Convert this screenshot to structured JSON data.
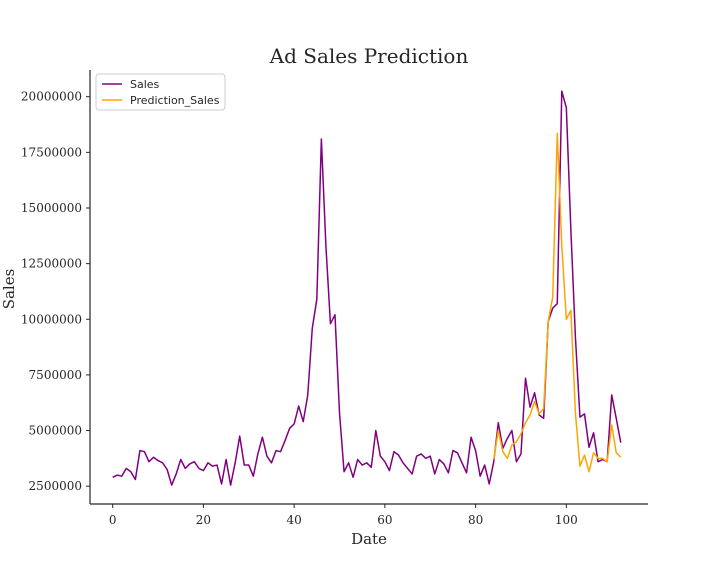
{
  "chart_data": {
    "type": "line",
    "title": "Ad Sales Prediction",
    "xlabel": "Date",
    "ylabel": "Sales",
    "xlim": [
      -5,
      118
    ],
    "ylim": [
      1700000,
      21200000
    ],
    "xticks": [
      0,
      20,
      40,
      60,
      80,
      100
    ],
    "yticks": [
      2500000,
      5000000,
      7500000,
      10000000,
      12500000,
      15000000,
      17500000,
      20000000
    ],
    "grid": false,
    "legend_position": "top-left",
    "series": [
      {
        "name": "Sales",
        "color": "#800080",
        "x_start": 0,
        "values": [
          2900000,
          3000000,
          2950000,
          3300000,
          3150000,
          2800000,
          4100000,
          4050000,
          3600000,
          3800000,
          3650000,
          3550000,
          3250000,
          2550000,
          3050000,
          3700000,
          3300000,
          3500000,
          3600000,
          3300000,
          3200000,
          3550000,
          3400000,
          3450000,
          2600000,
          3700000,
          2550000,
          3550000,
          4750000,
          3450000,
          3450000,
          2950000,
          3950000,
          4700000,
          3850000,
          3550000,
          4100000,
          4050000,
          4550000,
          5100000,
          5300000,
          6100000,
          5400000,
          6600000,
          9600000,
          10900000,
          18100000,
          13300000,
          9800000,
          10200000,
          5800000,
          3150000,
          3550000,
          2900000,
          3700000,
          3450000,
          3550000,
          3350000,
          5000000,
          3850000,
          3600000,
          3200000,
          4050000,
          3900000,
          3550000,
          3300000,
          3050000,
          3850000,
          3950000,
          3750000,
          3850000,
          3050000,
          3700000,
          3500000,
          3100000,
          4100000,
          4000000,
          3550000,
          3100000,
          4700000,
          4100000,
          2950000,
          3450000,
          2600000,
          3600000,
          5350000,
          4200000,
          4650000,
          5000000,
          3600000,
          3950000,
          7350000,
          6050000,
          6700000,
          5700000,
          5550000,
          9900000,
          10500000,
          10700000,
          20250000,
          19500000,
          14000000,
          9200000,
          5600000,
          5750000,
          4250000,
          4900000,
          3600000,
          3700000,
          3600000,
          6600000,
          5550000,
          4450000
        ]
      },
      {
        "name": "Prediction_Sales",
        "color": "#ffa500",
        "x_start": 84,
        "values": [
          3700000,
          5000000,
          4050000,
          3750000,
          4350000,
          4500000,
          4850000,
          5350000,
          5700000,
          6300000,
          5750000,
          6000000,
          9900000,
          11000000,
          18350000,
          13300000,
          10000000,
          10400000,
          5800000,
          3400000,
          3900000,
          3150000,
          4000000,
          3750000,
          3750000,
          3600000,
          5250000,
          4000000,
          3800000
        ]
      }
    ]
  }
}
